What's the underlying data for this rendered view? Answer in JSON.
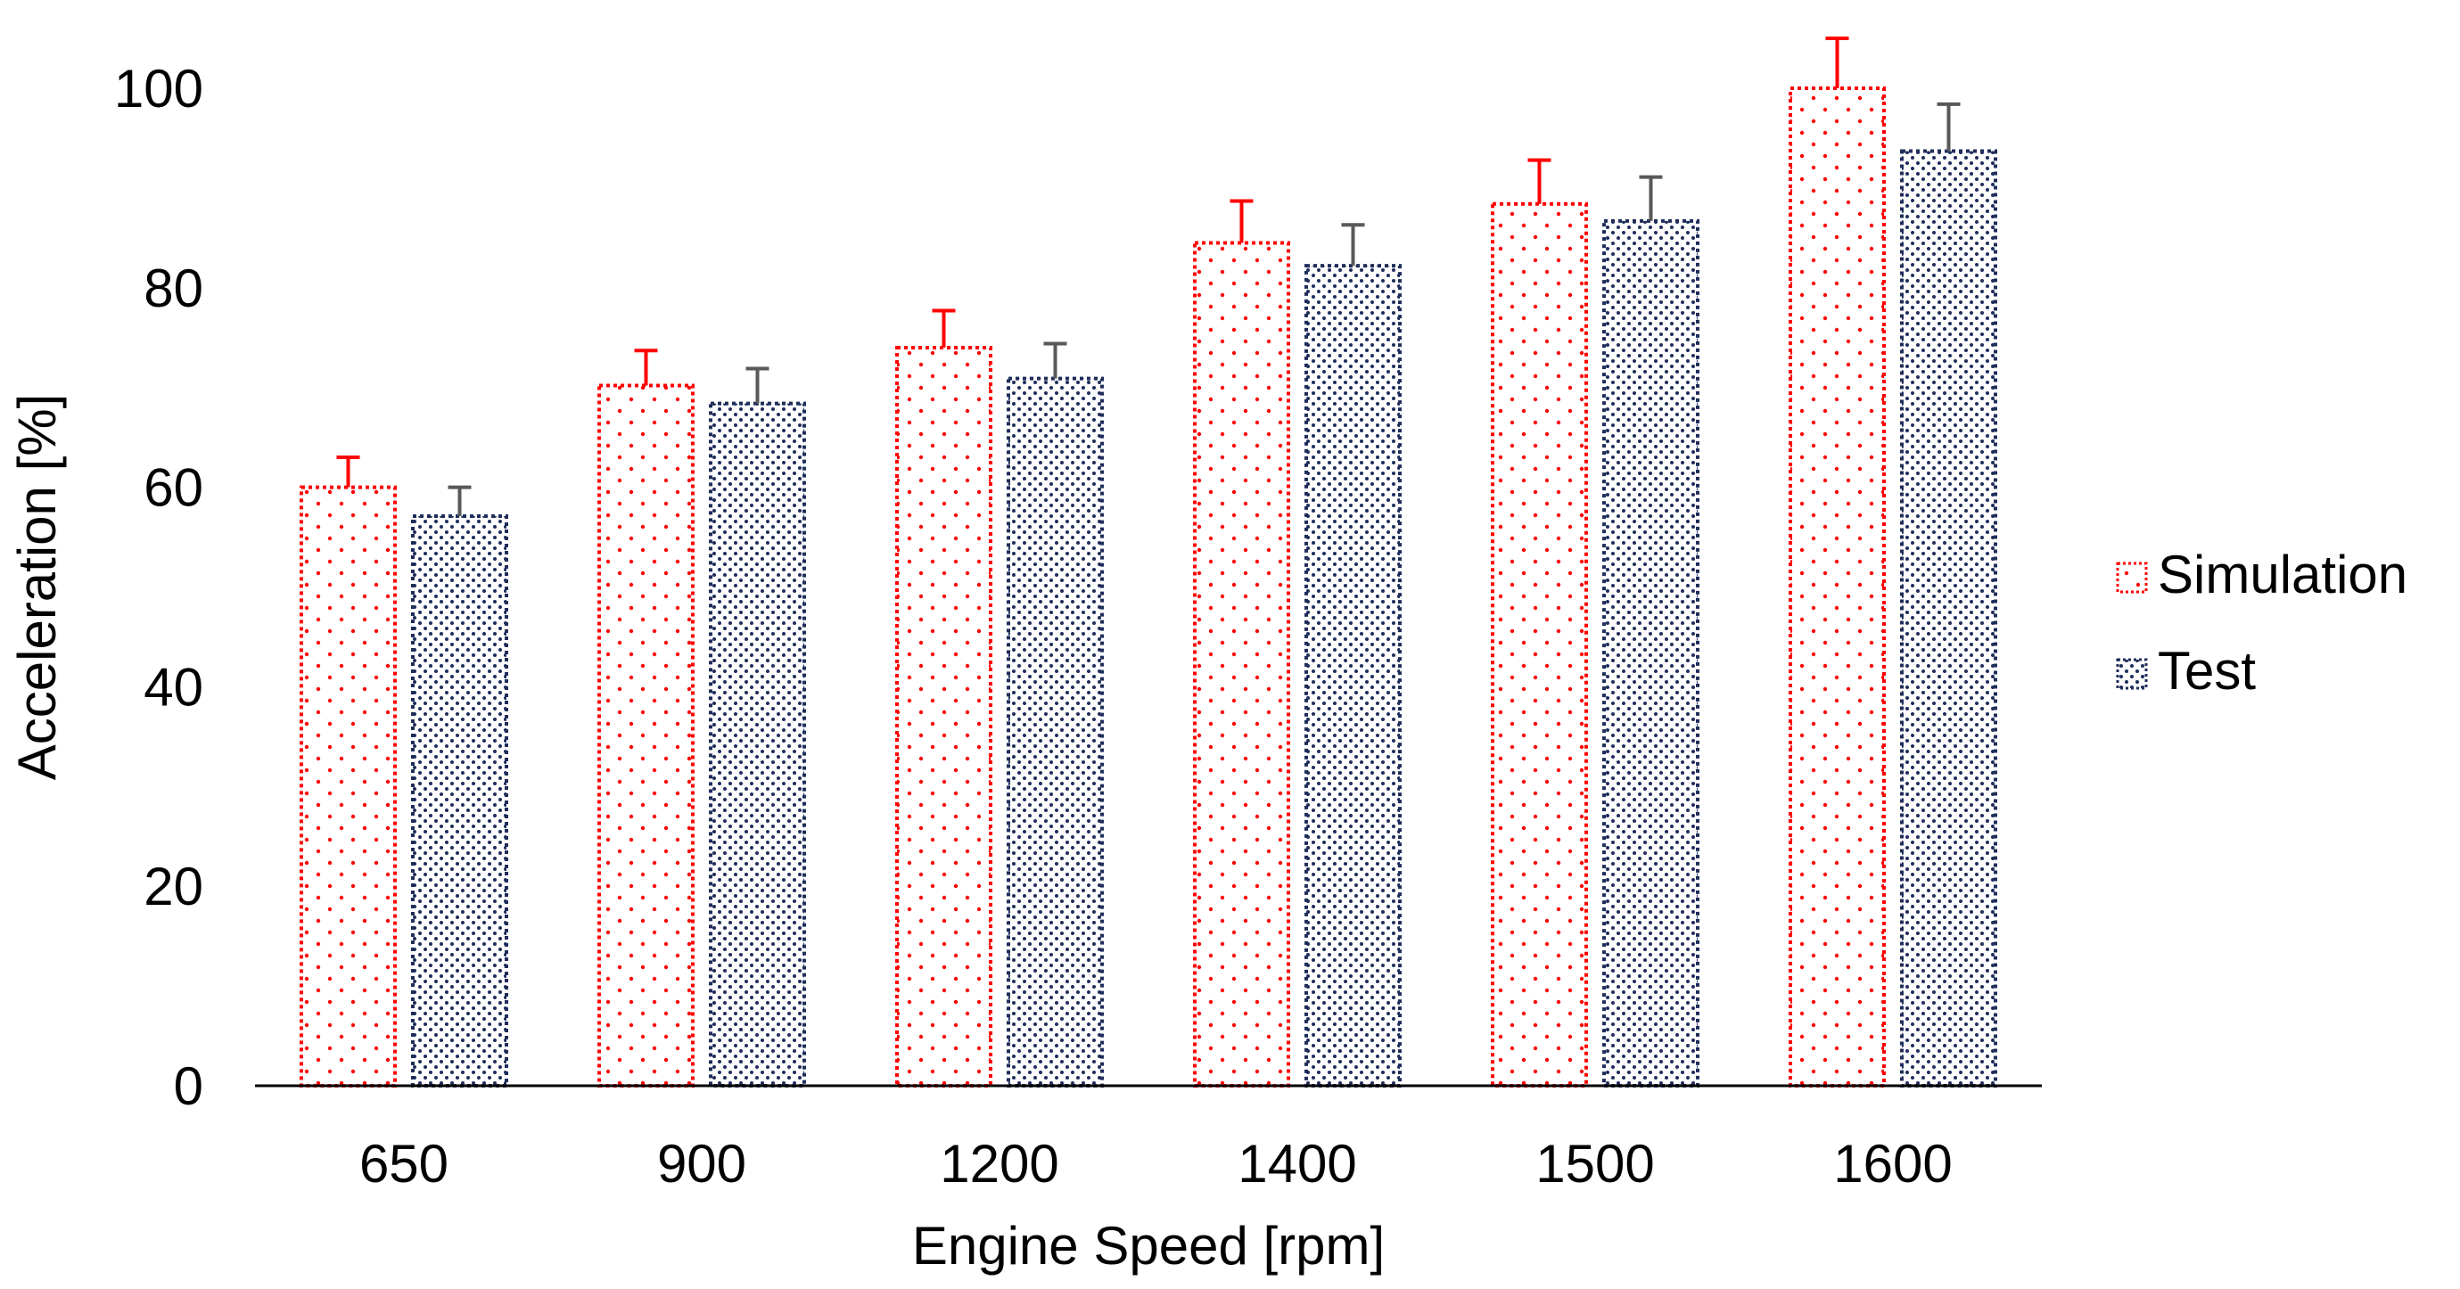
{
  "chart_data": {
    "type": "bar",
    "title": "",
    "xlabel": "Engine Speed [rpm]",
    "ylabel": "Acceleration [%]",
    "categories": [
      "650",
      "900",
      "1200",
      "1400",
      "1500",
      "1600"
    ],
    "series": [
      {
        "name": "Simulation",
        "color": "#ff0000",
        "values": [
          60,
          70.2,
          74,
          84.5,
          88.4,
          100
        ],
        "error_plus": [
          3,
          3.5,
          3.7,
          4.2,
          4.4,
          5
        ]
      },
      {
        "name": "Test",
        "color": "#1f2d5a",
        "values": [
          57.1,
          68.4,
          70.9,
          82.2,
          86.7,
          93.7
        ],
        "error_plus": [
          2.9,
          3.5,
          3.5,
          4.1,
          4.4,
          4.7
        ]
      }
    ],
    "ylim": [
      0,
      100
    ],
    "yticks": [
      0,
      20,
      40,
      60,
      80,
      100
    ],
    "grid": false,
    "legend_position": "right",
    "error_bar_color": {
      "Simulation": "#ff0000",
      "Test": "#595959"
    }
  }
}
